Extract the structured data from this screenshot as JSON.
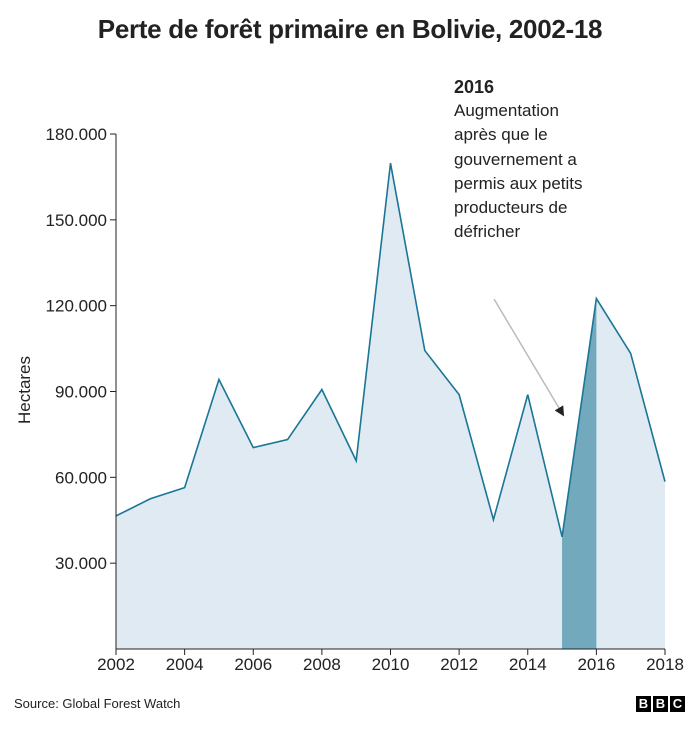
{
  "title": "Perte de forêt primaire en Bolivie, 2002-18",
  "annotation": {
    "year": "2016",
    "text": "Augmentation après que le gouvernement a permis aux petits producteurs de défricher"
  },
  "source": "Source: Global Forest Watch",
  "logo": [
    "B",
    "B",
    "C"
  ],
  "colors": {
    "line": "#1b7596",
    "area": "#dfeaf2",
    "highlight": "#72a9bc",
    "axis": "#222222",
    "arrow": "#bbbbbb"
  },
  "chart_data": {
    "type": "area",
    "title": "Perte de forêt primaire en Bolivie, 2002-18",
    "xlabel": "",
    "ylabel": "Hectares",
    "x": [
      2002,
      2003,
      2004,
      2005,
      2006,
      2007,
      2008,
      2009,
      2010,
      2011,
      2012,
      2013,
      2014,
      2015,
      2016,
      2017,
      2018
    ],
    "values": [
      46500,
      52500,
      56400,
      94200,
      70400,
      73200,
      90700,
      65800,
      169800,
      104300,
      88900,
      45200,
      88900,
      39200,
      122500,
      103300,
      58500
    ],
    "xlim": [
      2002,
      2018
    ],
    "ylim": [
      0,
      180000
    ],
    "x_ticks": [
      "2002",
      "2004",
      "2006",
      "2008",
      "2010",
      "2012",
      "2014",
      "2016",
      "2018"
    ],
    "y_ticks": [
      "30.000",
      "60.000",
      "90.000",
      "120.000",
      "150.000",
      "180.000"
    ],
    "highlight_range": [
      2015,
      2016
    ],
    "grid": false,
    "annotations": [
      {
        "x": 2016,
        "label": "2016",
        "text": "Augmentation après que le gouvernement a permis aux petits producteurs de défricher"
      }
    ]
  }
}
